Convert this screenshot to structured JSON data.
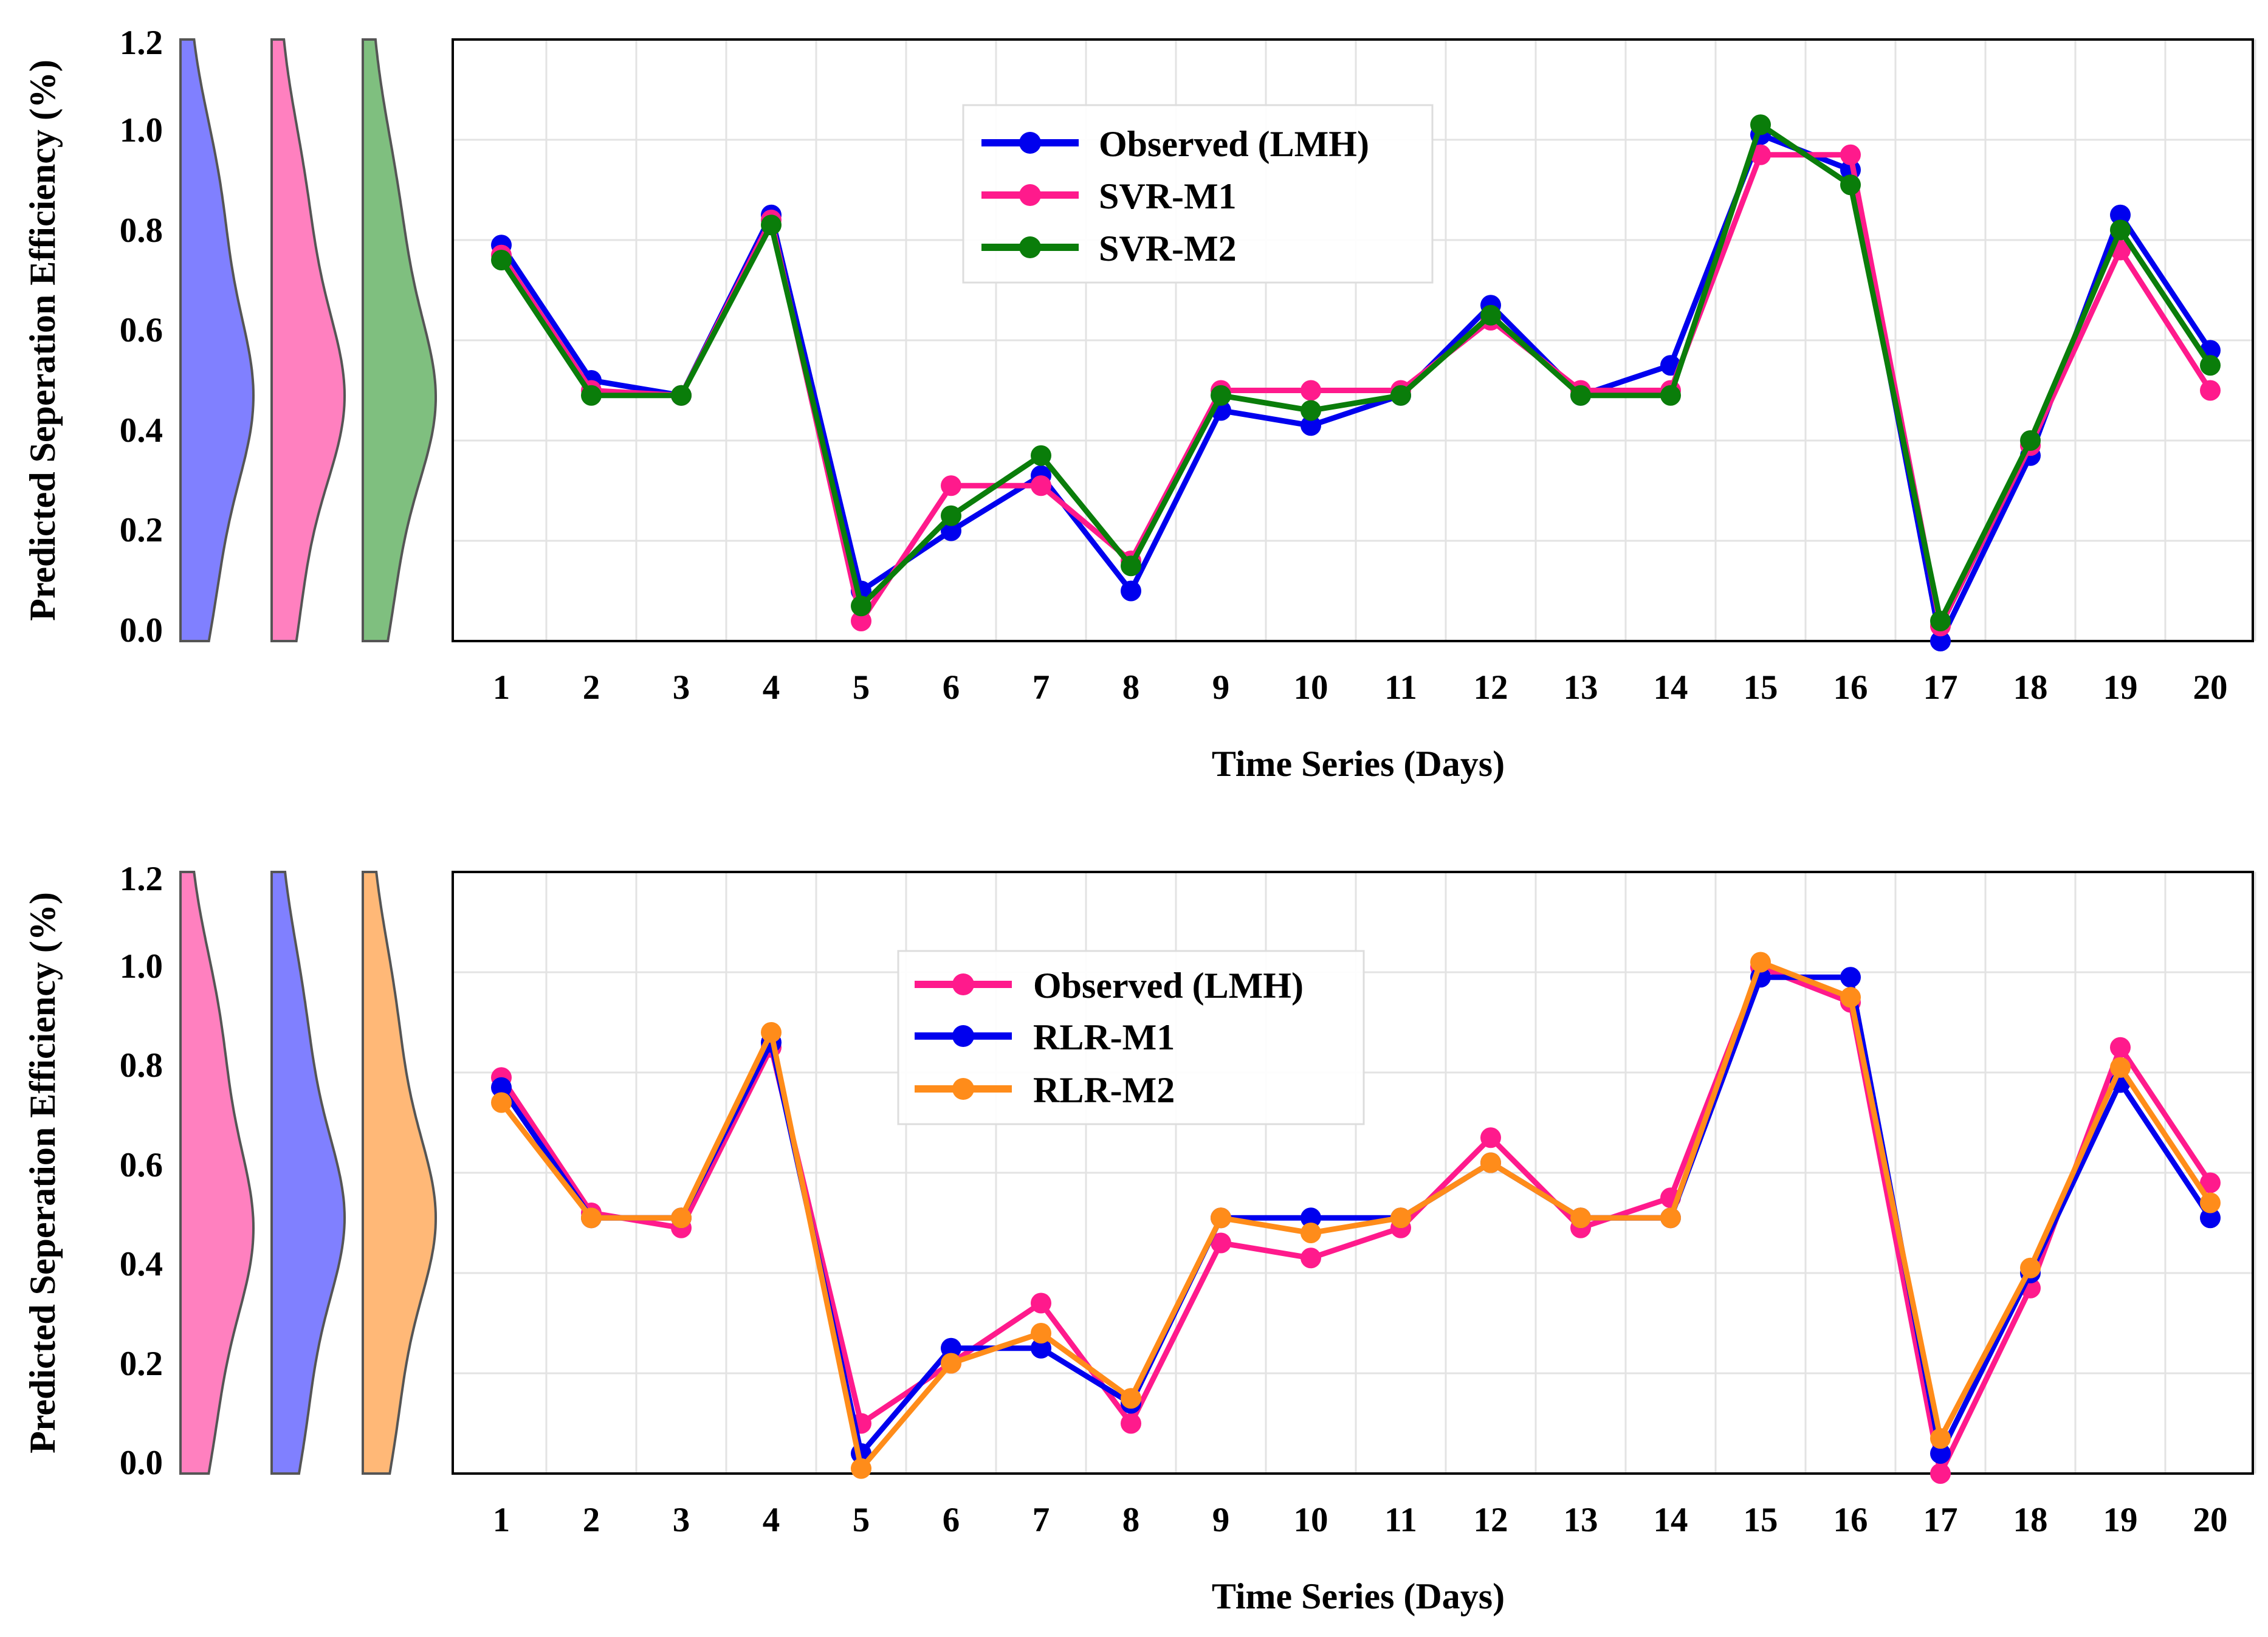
{
  "chart_data": [
    {
      "type": "line",
      "title": "",
      "xlabel": "Time Series (Days)",
      "ylabel": "Predicted Seperation Efficiency (%)",
      "ylim": [
        0,
        1.2
      ],
      "yticks": [
        0.0,
        0.2,
        0.4,
        0.6,
        0.8,
        1.0,
        1.2
      ],
      "ytick_labels": [
        "0.0",
        "0.2",
        "0.4",
        "0.6",
        "0.8",
        "1.0",
        "1.2"
      ],
      "categories": [
        "1",
        "2",
        "3",
        "4",
        "5",
        "6",
        "7",
        "8",
        "9",
        "10",
        "11",
        "12",
        "13",
        "14",
        "15",
        "16",
        "17",
        "18",
        "19",
        "20"
      ],
      "grid": true,
      "legend_position": "top-center",
      "series": [
        {
          "name": "Observed (LMH)",
          "color": "#0000ee",
          "values": [
            0.79,
            0.52,
            0.49,
            0.85,
            0.1,
            0.22,
            0.33,
            0.1,
            0.46,
            0.43,
            0.49,
            0.67,
            0.49,
            0.55,
            1.01,
            0.94,
            0.0,
            0.37,
            0.85,
            0.58
          ]
        },
        {
          "name": "SVR-M1",
          "color": "#ff1a8c",
          "values": [
            0.77,
            0.5,
            0.49,
            0.84,
            0.04,
            0.31,
            0.31,
            0.16,
            0.5,
            0.5,
            0.5,
            0.64,
            0.5,
            0.5,
            0.97,
            0.97,
            0.03,
            0.39,
            0.78,
            0.5
          ]
        },
        {
          "name": "SVR-M2",
          "color": "#0a7d0a",
          "values": [
            0.76,
            0.49,
            0.49,
            0.83,
            0.07,
            0.25,
            0.37,
            0.15,
            0.49,
            0.46,
            0.49,
            0.65,
            0.49,
            0.49,
            1.03,
            0.91,
            0.04,
            0.4,
            0.82,
            0.55
          ]
        }
      ],
      "distributions": [
        {
          "name": "Observed (LMH)",
          "fill": "#8080ff"
        },
        {
          "name": "SVR-M1",
          "fill": "#ff80bf"
        },
        {
          "name": "SVR-M2",
          "fill": "#7fbf7f"
        }
      ]
    },
    {
      "type": "line",
      "title": "",
      "xlabel": "Time Series (Days)",
      "ylabel": "Predicted Seperation Efficiency (%)",
      "ylim": [
        0,
        1.2
      ],
      "yticks": [
        0.0,
        0.2,
        0.4,
        0.6,
        0.8,
        1.0,
        1.2
      ],
      "ytick_labels": [
        "0.0",
        "0.2",
        "0.4",
        "0.6",
        "0.8",
        "1.0",
        "1.2"
      ],
      "categories": [
        "1",
        "2",
        "3",
        "4",
        "5",
        "6",
        "7",
        "8",
        "9",
        "10",
        "11",
        "12",
        "13",
        "14",
        "15",
        "16",
        "17",
        "18",
        "19",
        "20"
      ],
      "grid": true,
      "legend_position": "top-center",
      "series": [
        {
          "name": "Observed (LMH)",
          "color": "#ff1a8c",
          "values": [
            0.79,
            0.52,
            0.49,
            0.85,
            0.1,
            0.22,
            0.34,
            0.1,
            0.46,
            0.43,
            0.49,
            0.67,
            0.49,
            0.55,
            1.01,
            0.94,
            0.0,
            0.37,
            0.85,
            0.58
          ]
        },
        {
          "name": "RLR-M1",
          "color": "#0000ee",
          "values": [
            0.77,
            0.51,
            0.51,
            0.86,
            0.04,
            0.25,
            0.25,
            0.14,
            0.51,
            0.51,
            0.51,
            0.62,
            0.51,
            0.51,
            0.99,
            0.99,
            0.04,
            0.4,
            0.78,
            0.51
          ]
        },
        {
          "name": "RLR-M2",
          "color": "#ff8c1a",
          "values": [
            0.74,
            0.51,
            0.51,
            0.88,
            0.01,
            0.22,
            0.28,
            0.15,
            0.51,
            0.48,
            0.51,
            0.62,
            0.51,
            0.51,
            1.02,
            0.95,
            0.07,
            0.41,
            0.81,
            0.54
          ]
        }
      ],
      "distributions": [
        {
          "name": "Observed (LMH)",
          "fill": "#ff80bf"
        },
        {
          "name": "RLR-M1",
          "fill": "#8080ff"
        },
        {
          "name": "RLR-M2",
          "fill": "#ffb877"
        }
      ]
    }
  ]
}
